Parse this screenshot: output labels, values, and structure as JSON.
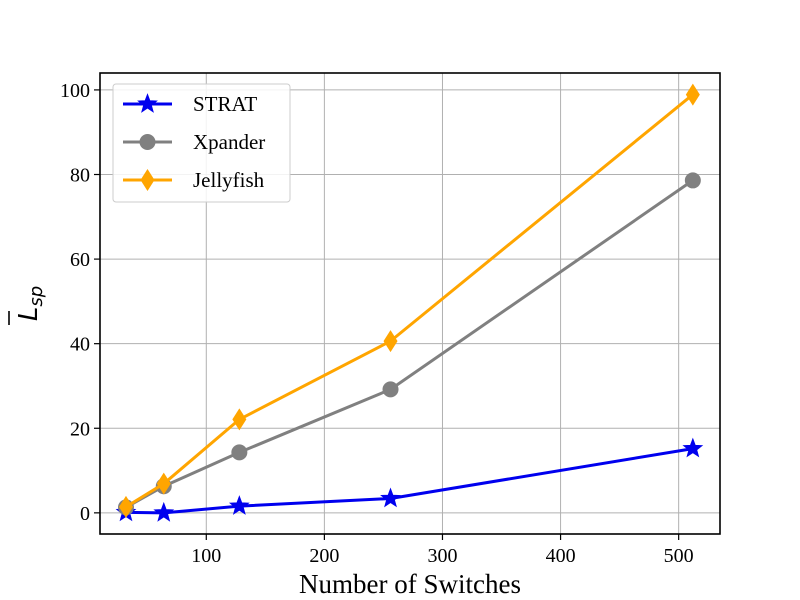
{
  "chart_data": {
    "type": "line",
    "xlabel": "Number of Switches",
    "ylabel": {
      "main": "L",
      "sub": "sp",
      "overline": true
    },
    "xlim": [
      10,
      535
    ],
    "ylim": [
      -5,
      104
    ],
    "xticks": [
      100,
      200,
      300,
      400,
      500
    ],
    "yticks": [
      0,
      20,
      40,
      60,
      80,
      100
    ],
    "grid": true,
    "legend_position": "upper-left",
    "x": [
      32,
      64,
      128,
      256,
      512
    ],
    "series": [
      {
        "name": "STRAT",
        "color": "#0000ee",
        "marker": "star",
        "values": [
          0.1,
          0.0,
          1.6,
          3.4,
          15.2
        ]
      },
      {
        "name": "Xpander",
        "color": "#808080",
        "marker": "circle",
        "values": [
          1.3,
          6.3,
          14.3,
          29.2,
          78.6
        ]
      },
      {
        "name": "Jellyfish",
        "color": "#ffa500",
        "marker": "diamond",
        "values": [
          1.4,
          6.9,
          22.1,
          40.6,
          98.9
        ]
      }
    ]
  }
}
